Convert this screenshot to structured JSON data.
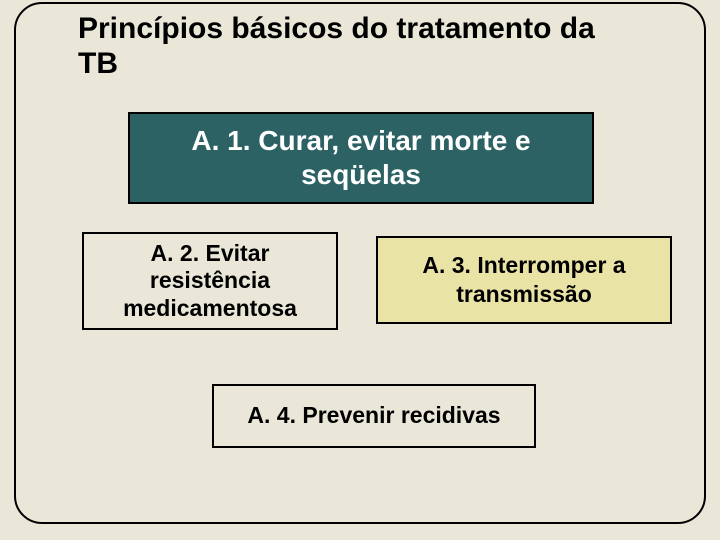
{
  "background_color": "#eae7d8",
  "frame_border_color": "#000000",
  "title": "Princípios básicos do tratamento da TB",
  "title_color": "#000000",
  "boxes": {
    "a1": {
      "text": "A. 1. Curar, evitar morte e seqüelas",
      "bg_color": "#2d6264",
      "text_color": "#ffffff"
    },
    "a2": {
      "text": "A. 2. Evitar resistência medicamentosa",
      "bg_color": "#eae7d8",
      "text_color": "#000000"
    },
    "a3": {
      "text": "A. 3. Interromper a transmissão",
      "bg_color": "#eae3a6",
      "text_color": "#000000"
    },
    "a4": {
      "text": "A. 4. Prevenir recidivas",
      "bg_color": "#eae7d8",
      "text_color": "#000000"
    }
  }
}
